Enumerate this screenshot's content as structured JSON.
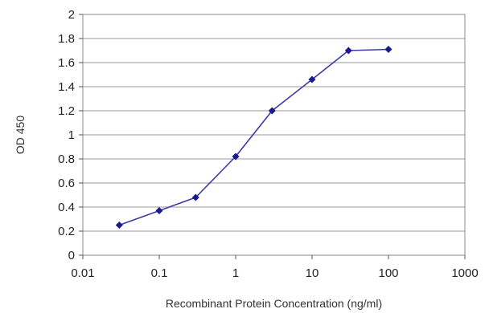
{
  "chart_data": {
    "type": "line",
    "xlabel": "Recombinant Protein Concentration (ng/ml)",
    "ylabel": "OD 450",
    "x_scale": "log",
    "xlim": [
      0.01,
      1000
    ],
    "ylim": [
      0,
      2
    ],
    "x_ticks": [
      "0.01",
      "0.1",
      "1",
      "10",
      "100",
      "1000"
    ],
    "y_ticks": [
      "0",
      "0.2",
      "0.4",
      "0.6",
      "0.8",
      "1",
      "1.2",
      "1.4",
      "1.6",
      "1.8",
      "2"
    ],
    "grid": "horizontal",
    "legend": "none",
    "series": [
      {
        "x": [
          0.03,
          0.1,
          0.3,
          1,
          3,
          10,
          30,
          100
        ],
        "y": [
          0.25,
          0.37,
          0.48,
          0.82,
          1.2,
          1.46,
          1.7,
          1.71
        ],
        "color": "#3b3ba8",
        "marker": "diamond",
        "marker_color": "#1a1a8c"
      }
    ]
  }
}
